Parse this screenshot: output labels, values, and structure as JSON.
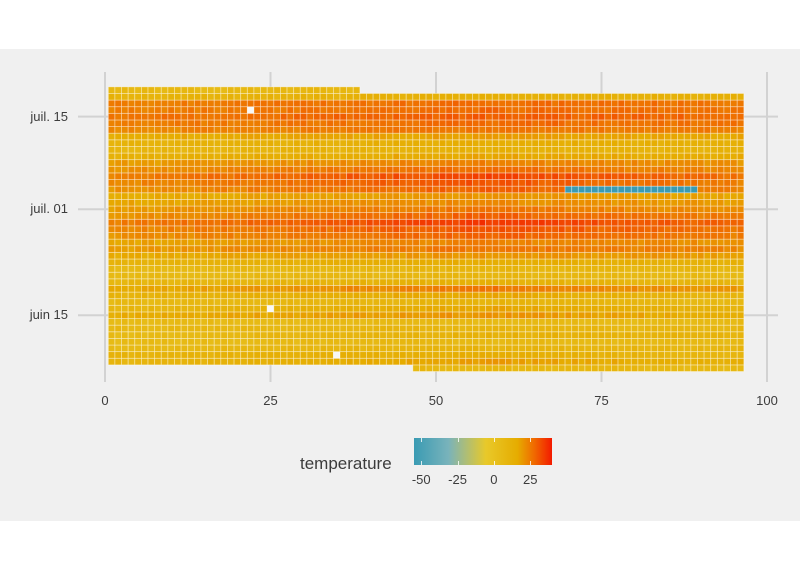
{
  "chart_data": {
    "type": "heatmap",
    "title": "",
    "xlabel": "",
    "ylabel": "",
    "x_range": [
      0,
      100
    ],
    "x_ticks": [
      0,
      25,
      50,
      75,
      100
    ],
    "y_ticks": [
      {
        "label": "juil. 15",
        "day_offset": 38
      },
      {
        "label": "juil. 01",
        "day_offset": 24
      },
      {
        "label": "juin 15",
        "day_offset": 8
      }
    ],
    "y_description": "date (one row per day, approx. juin 07 to juil. 19)",
    "x_cell_range": [
      1,
      96
    ],
    "n_rows": 43,
    "legend": {
      "title": "temperature",
      "ticks": [
        -50,
        -25,
        0,
        25
      ],
      "range": [
        -55,
        40
      ],
      "colors": [
        "#3a9bb3",
        "#79b3bb",
        "#e8c92a",
        "#e6ac00",
        "#f06a00",
        "#f31a00"
      ]
    },
    "row_profiles_note": "each row: [left_temp, mid_temp, right_temp] in degrees, row 0 = bottom (earliest day)",
    "row_profiles": [
      [
        5,
        8,
        6
      ],
      [
        8,
        18,
        12
      ],
      [
        10,
        14,
        8
      ],
      [
        6,
        10,
        8
      ],
      [
        5,
        7,
        6
      ],
      [
        5,
        12,
        10
      ],
      [
        6,
        9,
        7
      ],
      [
        5,
        6,
        5
      ],
      [
        14,
        20,
        14
      ],
      [
        8,
        16,
        10
      ],
      [
        6,
        10,
        6
      ],
      [
        10,
        16,
        8
      ],
      [
        14,
        26,
        18
      ],
      [
        8,
        12,
        8
      ],
      [
        5,
        8,
        6
      ],
      [
        6,
        9,
        8
      ],
      [
        10,
        14,
        12
      ],
      [
        14,
        20,
        18
      ],
      [
        18,
        26,
        22
      ],
      [
        16,
        24,
        20
      ],
      [
        20,
        30,
        24
      ],
      [
        22,
        32,
        26
      ],
      [
        24,
        36,
        28
      ],
      [
        20,
        30,
        24
      ],
      [
        18,
        26,
        20
      ],
      [
        16,
        22,
        18
      ],
      [
        14,
        20,
        16
      ],
      [
        20,
        30,
        24
      ],
      [
        22,
        32,
        24
      ],
      [
        24,
        34,
        26
      ],
      [
        20,
        28,
        22
      ],
      [
        18,
        24,
        20
      ],
      [
        12,
        16,
        14
      ],
      [
        8,
        12,
        10
      ],
      [
        10,
        14,
        12
      ],
      [
        14,
        18,
        16
      ],
      [
        22,
        26,
        24
      ],
      [
        24,
        28,
        26
      ],
      [
        26,
        30,
        28
      ],
      [
        24,
        28,
        26
      ],
      [
        24,
        28,
        26
      ],
      [
        10,
        12,
        12
      ],
      [
        6,
        8,
        8
      ]
    ],
    "partial_rows": [
      {
        "row": 42,
        "x_from": 1,
        "x_to": 38
      },
      {
        "row": 0,
        "x_from": 47,
        "x_to": 96
      }
    ],
    "anomalies": [
      {
        "row": 27,
        "x_from": 70,
        "x_to": 89,
        "temperature": -55,
        "note": "cold outlier strip"
      }
    ],
    "missing_cells": [
      {
        "row": 39,
        "x": 22
      },
      {
        "row": 9,
        "x": 25
      },
      {
        "row": 2,
        "x": 35
      }
    ],
    "grid": true,
    "legend_position": "bottom"
  }
}
